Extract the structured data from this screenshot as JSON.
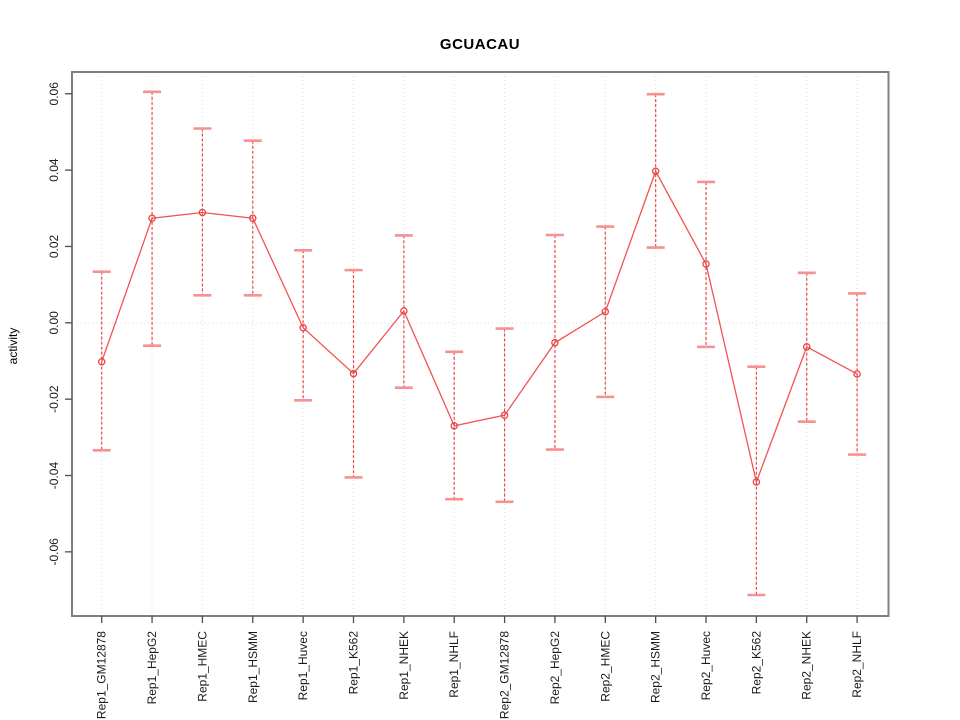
{
  "title": "GCUACAU",
  "chart_data": {
    "type": "line",
    "title": "GCUACAU",
    "xlabel": "",
    "ylabel": "activity",
    "legend": "none",
    "grid": "vertical dotted gridline at every category; horizontal dotted gridline at y=0 only",
    "marker": "open-circle",
    "error_bars": true,
    "categories": [
      "Rep1_GM12878",
      "Rep1_HepG2",
      "Rep1_HMEC",
      "Rep1_HSMM",
      "Rep1_Huvec",
      "Rep1_K562",
      "Rep1_NHEK",
      "Rep1_NHLF",
      "Rep2_GM12878",
      "Rep2_HepG2",
      "Rep2_HMEC",
      "Rep2_HSMM",
      "Rep2_Huvec",
      "Rep2_K562",
      "Rep2_NHEK",
      "Rep2_NHLF"
    ],
    "series": [
      {
        "name": "activity",
        "values": [
          -0.0102,
          0.0274,
          0.0289,
          0.0274,
          -0.0013,
          -0.0133,
          0.0031,
          -0.027,
          -0.0242,
          -0.0052,
          0.0029,
          0.0397,
          0.0154,
          -0.0417,
          -0.0063,
          -0.0134
        ],
        "error_low": [
          -0.0334,
          -0.006,
          0.0072,
          0.0072,
          -0.0203,
          -0.0405,
          -0.017,
          -0.0462,
          -0.0469,
          -0.0332,
          -0.0194,
          0.0197,
          -0.0063,
          -0.0713,
          -0.0259,
          -0.0345
        ],
        "error_high": [
          0.0134,
          0.0605,
          0.0509,
          0.0477,
          0.019,
          0.0138,
          0.0229,
          -0.0076,
          -0.0015,
          0.023,
          0.0252,
          0.0599,
          0.0369,
          -0.0115,
          0.0131,
          0.0077
        ]
      }
    ],
    "ylim": [
      -0.0768,
      0.0657
    ],
    "yticks": [
      0.06,
      0.04,
      0.02,
      0.0,
      -0.02,
      -0.04,
      -0.06
    ],
    "ytick_labels": [
      "0.06",
      "0.04",
      "0.02",
      "0.00",
      "-0.02",
      "-0.04",
      "-0.06"
    ],
    "colors": {
      "series_line": "#f25252",
      "marker_stroke": "#e84343",
      "error_stem": "#ee4747",
      "error_cap": "#f79090",
      "gridline": "#dcdcdc",
      "plot_border": "#7f7f7f",
      "tick": "#4d4d4d",
      "tick_label": "#1a1a1a",
      "title": "#000000"
    }
  }
}
